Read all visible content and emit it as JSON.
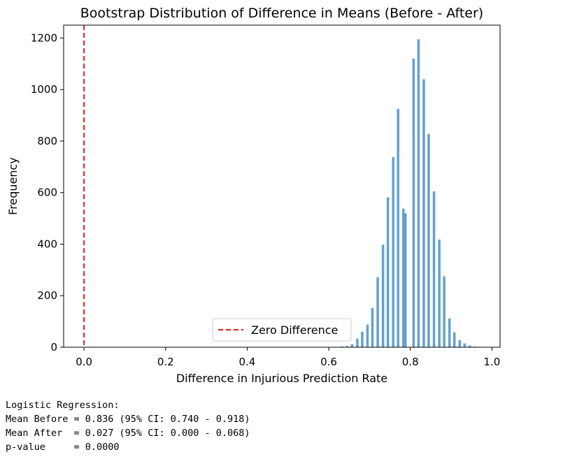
{
  "chart_data": {
    "type": "bar",
    "title": "Bootstrap Distribution of Difference in Means (Before - After)",
    "xlabel": "Difference in Injurious Prediction Rate",
    "ylabel": "Frequency",
    "xlim": [
      -0.05,
      1.02
    ],
    "ylim": [
      0,
      1250
    ],
    "xticks": [
      0.0,
      0.2,
      0.4,
      0.6,
      0.8,
      1.0
    ],
    "xtick_labels": [
      "0.0",
      "0.2",
      "0.4",
      "0.6",
      "0.8",
      "1.0"
    ],
    "yticks": [
      0,
      200,
      400,
      600,
      800,
      1000,
      1200
    ],
    "ytick_labels": [
      "0",
      "200",
      "400",
      "600",
      "800",
      "1000",
      "1200"
    ],
    "bar_color": "#5b9bd0",
    "bar_width": 0.006,
    "bins": [
      {
        "x": 0.632,
        "y": 3
      },
      {
        "x": 0.645,
        "y": 5
      },
      {
        "x": 0.657,
        "y": 12
      },
      {
        "x": 0.67,
        "y": 33
      },
      {
        "x": 0.682,
        "y": 60
      },
      {
        "x": 0.695,
        "y": 88
      },
      {
        "x": 0.707,
        "y": 152
      },
      {
        "x": 0.72,
        "y": 272
      },
      {
        "x": 0.733,
        "y": 398
      },
      {
        "x": 0.745,
        "y": 582
      },
      {
        "x": 0.758,
        "y": 738
      },
      {
        "x": 0.77,
        "y": 925
      },
      {
        "x": 0.783,
        "y": 538
      },
      {
        "x": 0.788,
        "y": 520
      },
      {
        "x": 0.808,
        "y": 1120
      },
      {
        "x": 0.82,
        "y": 1195
      },
      {
        "x": 0.833,
        "y": 1040
      },
      {
        "x": 0.845,
        "y": 828
      },
      {
        "x": 0.858,
        "y": 605
      },
      {
        "x": 0.871,
        "y": 418
      },
      {
        "x": 0.883,
        "y": 275
      },
      {
        "x": 0.896,
        "y": 112
      },
      {
        "x": 0.908,
        "y": 58
      },
      {
        "x": 0.921,
        "y": 28
      },
      {
        "x": 0.933,
        "y": 15
      },
      {
        "x": 0.946,
        "y": 7
      },
      {
        "x": 0.958,
        "y": 3
      }
    ],
    "reference_line": {
      "x": 0.0,
      "color": "#e41a1c",
      "style": "dashed"
    },
    "legend": {
      "label": "Zero Difference",
      "placement": "lower-center"
    },
    "grid": false
  },
  "output": {
    "lines": [
      "Logistic Regression:",
      "Mean Before = 0.836 (95% CI: 0.740 - 0.918)",
      "Mean After  = 0.027 (95% CI: 0.000 - 0.068)",
      "p-value     = 0.0000"
    ]
  }
}
